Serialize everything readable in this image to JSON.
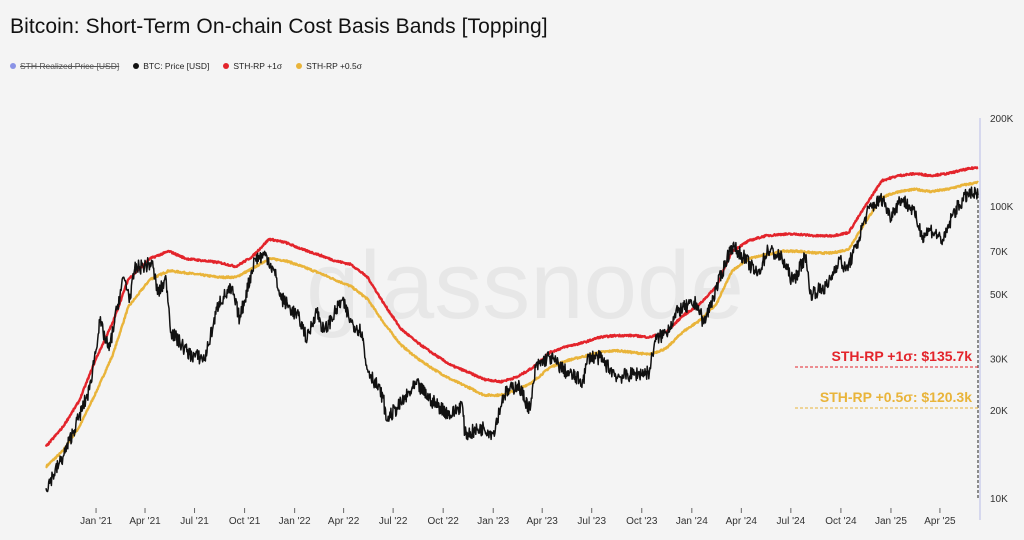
{
  "chart_data": {
    "type": "line",
    "title": "Bitcoin: Short-Term On-chain Cost Basis Bands [Topping]",
    "watermark": "glassnode",
    "y_scale": "log",
    "ylim": [
      10000,
      200000
    ],
    "y_ticks": [
      {
        "value": 10000,
        "label": "10K"
      },
      {
        "value": 20000,
        "label": "20K"
      },
      {
        "value": 30000,
        "label": "30K"
      },
      {
        "value": 50000,
        "label": "50K"
      },
      {
        "value": 70000,
        "label": "70K"
      },
      {
        "value": 100000,
        "label": "100K"
      },
      {
        "value": 200000,
        "label": "200K"
      }
    ],
    "x_range": [
      "2020-10-01",
      "2025-06-10"
    ],
    "x_ticks": [
      {
        "date": "2021-01-01",
        "label": "Jan '21"
      },
      {
        "date": "2021-04-01",
        "label": "Apr '21"
      },
      {
        "date": "2021-07-01",
        "label": "Jul '21"
      },
      {
        "date": "2021-10-01",
        "label": "Oct '21"
      },
      {
        "date": "2022-01-01",
        "label": "Jan '22"
      },
      {
        "date": "2022-04-01",
        "label": "Apr '22"
      },
      {
        "date": "2022-07-01",
        "label": "Jul '22"
      },
      {
        "date": "2022-10-01",
        "label": "Oct '22"
      },
      {
        "date": "2023-01-01",
        "label": "Jan '23"
      },
      {
        "date": "2023-04-01",
        "label": "Apr '23"
      },
      {
        "date": "2023-07-01",
        "label": "Jul '23"
      },
      {
        "date": "2023-10-01",
        "label": "Oct '23"
      },
      {
        "date": "2024-01-01",
        "label": "Jan '24"
      },
      {
        "date": "2024-04-01",
        "label": "Apr '24"
      },
      {
        "date": "2024-07-01",
        "label": "Jul '24"
      },
      {
        "date": "2024-10-01",
        "label": "Oct '24"
      },
      {
        "date": "2025-01-01",
        "label": "Jan '25"
      },
      {
        "date": "2025-04-01",
        "label": "Apr '25"
      }
    ],
    "legend_position": "top-left",
    "grid": false,
    "series": [
      {
        "name": "STH Realized Price [USD]",
        "color": "#8a93e6",
        "hidden": true,
        "points": []
      },
      {
        "name": "BTC: Price [USD]",
        "color": "#111111",
        "points": [
          [
            "2020-10-01",
            10800
          ],
          [
            "2020-11-01",
            13800
          ],
          [
            "2020-12-01",
            19000
          ],
          [
            "2020-12-20",
            23500
          ],
          [
            "2021-01-08",
            40000
          ],
          [
            "2021-01-25",
            32000
          ],
          [
            "2021-02-10",
            46000
          ],
          [
            "2021-02-21",
            57000
          ],
          [
            "2021-03-05",
            48000
          ],
          [
            "2021-03-13",
            61000
          ],
          [
            "2021-04-14",
            63500
          ],
          [
            "2021-04-25",
            50000
          ],
          [
            "2021-05-10",
            56000
          ],
          [
            "2021-05-19",
            37000
          ],
          [
            "2021-06-22",
            31000
          ],
          [
            "2021-07-20",
            30000
          ],
          [
            "2021-08-15",
            47000
          ],
          [
            "2021-09-07",
            52000
          ],
          [
            "2021-09-22",
            41000
          ],
          [
            "2021-10-20",
            66000
          ],
          [
            "2021-11-10",
            68000
          ],
          [
            "2021-11-28",
            57000
          ],
          [
            "2021-12-05",
            49000
          ],
          [
            "2022-01-10",
            41000
          ],
          [
            "2022-01-24",
            35000
          ],
          [
            "2022-02-10",
            44000
          ],
          [
            "2022-02-24",
            37000
          ],
          [
            "2022-03-29",
            47500
          ],
          [
            "2022-04-15",
            40000
          ],
          [
            "2022-05-05",
            37000
          ],
          [
            "2022-05-12",
            28500
          ],
          [
            "2022-06-13",
            22000
          ],
          [
            "2022-06-18",
            18500
          ],
          [
            "2022-07-15",
            21000
          ],
          [
            "2022-08-13",
            24500
          ],
          [
            "2022-09-10",
            21500
          ],
          [
            "2022-10-15",
            19200
          ],
          [
            "2022-11-05",
            21000
          ],
          [
            "2022-11-10",
            16500
          ],
          [
            "2022-12-15",
            17400
          ],
          [
            "2023-01-01",
            16600
          ],
          [
            "2023-01-20",
            22500
          ],
          [
            "2023-02-15",
            24500
          ],
          [
            "2023-03-10",
            20000
          ],
          [
            "2023-03-20",
            28000
          ],
          [
            "2023-04-14",
            30500
          ],
          [
            "2023-05-15",
            27000
          ],
          [
            "2023-06-15",
            25000
          ],
          [
            "2023-06-25",
            30500
          ],
          [
            "2023-07-15",
            30200
          ],
          [
            "2023-08-18",
            26000
          ],
          [
            "2023-09-15",
            26500
          ],
          [
            "2023-10-15",
            27000
          ],
          [
            "2023-10-25",
            34500
          ],
          [
            "2023-11-15",
            37000
          ],
          [
            "2023-12-08",
            44000
          ],
          [
            "2024-01-10",
            46500
          ],
          [
            "2024-01-23",
            39500
          ],
          [
            "2024-02-15",
            52000
          ],
          [
            "2024-03-14",
            73000
          ],
          [
            "2024-04-05",
            67000
          ],
          [
            "2024-05-01",
            58000
          ],
          [
            "2024-05-20",
            71000
          ],
          [
            "2024-06-15",
            66000
          ],
          [
            "2024-07-05",
            55000
          ],
          [
            "2024-07-29",
            68000
          ],
          [
            "2024-08-05",
            50000
          ],
          [
            "2024-09-06",
            53000
          ],
          [
            "2024-09-28",
            66000
          ],
          [
            "2024-10-10",
            60000
          ],
          [
            "2024-10-29",
            72000
          ],
          [
            "2024-11-12",
            88000
          ],
          [
            "2024-11-22",
            98000
          ],
          [
            "2024-12-17",
            106000
          ],
          [
            "2024-12-30",
            92000
          ],
          [
            "2025-01-20",
            106000
          ],
          [
            "2025-02-10",
            97000
          ],
          [
            "2025-02-28",
            79000
          ],
          [
            "2025-03-15",
            83000
          ],
          [
            "2025-04-08",
            76000
          ],
          [
            "2025-04-25",
            94000
          ],
          [
            "2025-05-22",
            110000
          ],
          [
            "2025-06-10",
            109000
          ]
        ]
      },
      {
        "name": "STH-RP +1σ",
        "color": "#e3242b",
        "points": [
          [
            "2020-10-01",
            15000
          ],
          [
            "2020-11-01",
            17500
          ],
          [
            "2020-12-01",
            21500
          ],
          [
            "2021-01-01",
            30000
          ],
          [
            "2021-02-01",
            40000
          ],
          [
            "2021-03-01",
            56000
          ],
          [
            "2021-04-10",
            66000
          ],
          [
            "2021-05-15",
            70000
          ],
          [
            "2021-06-15",
            66000
          ],
          [
            "2021-07-15",
            65000
          ],
          [
            "2021-08-15",
            64000
          ],
          [
            "2021-09-15",
            62000
          ],
          [
            "2021-10-15",
            67000
          ],
          [
            "2021-11-15",
            77000
          ],
          [
            "2021-12-15",
            75000
          ],
          [
            "2022-01-15",
            71000
          ],
          [
            "2022-02-15",
            68000
          ],
          [
            "2022-03-15",
            65000
          ],
          [
            "2022-04-15",
            63000
          ],
          [
            "2022-05-15",
            57000
          ],
          [
            "2022-06-15",
            46000
          ],
          [
            "2022-07-15",
            38000
          ],
          [
            "2022-08-15",
            34000
          ],
          [
            "2022-09-15",
            31000
          ],
          [
            "2022-10-15",
            28500
          ],
          [
            "2022-11-15",
            27000
          ],
          [
            "2022-12-15",
            25500
          ],
          [
            "2023-01-15",
            25000
          ],
          [
            "2023-02-15",
            26000
          ],
          [
            "2023-03-15",
            28000
          ],
          [
            "2023-04-15",
            31500
          ],
          [
            "2023-05-15",
            33000
          ],
          [
            "2023-06-15",
            34000
          ],
          [
            "2023-07-15",
            35500
          ],
          [
            "2023-08-15",
            36000
          ],
          [
            "2023-09-15",
            36000
          ],
          [
            "2023-10-15",
            35500
          ],
          [
            "2023-11-15",
            37000
          ],
          [
            "2023-12-15",
            42000
          ],
          [
            "2024-01-15",
            46000
          ],
          [
            "2024-02-15",
            53000
          ],
          [
            "2024-03-15",
            70000
          ],
          [
            "2024-04-15",
            76000
          ],
          [
            "2024-05-15",
            79000
          ],
          [
            "2024-06-15",
            80000
          ],
          [
            "2024-07-15",
            80000
          ],
          [
            "2024-08-15",
            79000
          ],
          [
            "2024-09-15",
            79000
          ],
          [
            "2024-10-15",
            81000
          ],
          [
            "2024-11-15",
            100000
          ],
          [
            "2024-12-15",
            122000
          ],
          [
            "2025-01-15",
            127000
          ],
          [
            "2025-02-15",
            129000
          ],
          [
            "2025-03-15",
            127000
          ],
          [
            "2025-04-15",
            129000
          ],
          [
            "2025-05-15",
            133000
          ],
          [
            "2025-06-10",
            135700
          ]
        ]
      },
      {
        "name": "STH-RP +0.5σ",
        "color": "#e9b43a",
        "points": [
          [
            "2020-10-01",
            12800
          ],
          [
            "2020-11-01",
            14500
          ],
          [
            "2020-12-01",
            17500
          ],
          [
            "2021-01-01",
            23000
          ],
          [
            "2021-02-01",
            31000
          ],
          [
            "2021-03-01",
            45000
          ],
          [
            "2021-04-10",
            56000
          ],
          [
            "2021-05-15",
            60000
          ],
          [
            "2021-06-15",
            59000
          ],
          [
            "2021-07-15",
            58000
          ],
          [
            "2021-08-15",
            57000
          ],
          [
            "2021-09-15",
            57000
          ],
          [
            "2021-10-15",
            61000
          ],
          [
            "2021-11-15",
            66000
          ],
          [
            "2021-12-15",
            65000
          ],
          [
            "2022-01-15",
            62000
          ],
          [
            "2022-02-15",
            59000
          ],
          [
            "2022-03-15",
            56000
          ],
          [
            "2022-04-15",
            53000
          ],
          [
            "2022-05-15",
            48000
          ],
          [
            "2022-06-15",
            39500
          ],
          [
            "2022-07-15",
            33500
          ],
          [
            "2022-08-15",
            30000
          ],
          [
            "2022-09-15",
            27500
          ],
          [
            "2022-10-15",
            25500
          ],
          [
            "2022-11-15",
            24000
          ],
          [
            "2022-12-15",
            22500
          ],
          [
            "2023-01-15",
            22500
          ],
          [
            "2023-02-15",
            23500
          ],
          [
            "2023-03-15",
            25000
          ],
          [
            "2023-04-15",
            28000
          ],
          [
            "2023-05-15",
            29500
          ],
          [
            "2023-06-15",
            30500
          ],
          [
            "2023-07-15",
            31500
          ],
          [
            "2023-08-15",
            32000
          ],
          [
            "2023-09-15",
            31500
          ],
          [
            "2023-10-15",
            31000
          ],
          [
            "2023-11-15",
            32500
          ],
          [
            "2023-12-15",
            37000
          ],
          [
            "2024-01-15",
            40500
          ],
          [
            "2024-02-15",
            46000
          ],
          [
            "2024-03-15",
            60000
          ],
          [
            "2024-04-15",
            66000
          ],
          [
            "2024-05-15",
            68000
          ],
          [
            "2024-06-15",
            70000
          ],
          [
            "2024-07-15",
            70000
          ],
          [
            "2024-08-15",
            69000
          ],
          [
            "2024-09-15",
            69000
          ],
          [
            "2024-10-15",
            71000
          ],
          [
            "2024-11-15",
            88000
          ],
          [
            "2024-12-15",
            107000
          ],
          [
            "2025-01-15",
            112000
          ],
          [
            "2025-02-15",
            114000
          ],
          [
            "2025-03-15",
            112000
          ],
          [
            "2025-04-15",
            114000
          ],
          [
            "2025-05-15",
            118000
          ],
          [
            "2025-06-10",
            120300
          ]
        ]
      }
    ],
    "annotations": [
      {
        "text": "STH-RP +1σ: $135.7k",
        "value": 135700,
        "color": "#e3242b"
      },
      {
        "text": "STH-RP +0.5σ: $120.3k",
        "value": 120300,
        "color": "#e9b43a"
      }
    ]
  }
}
